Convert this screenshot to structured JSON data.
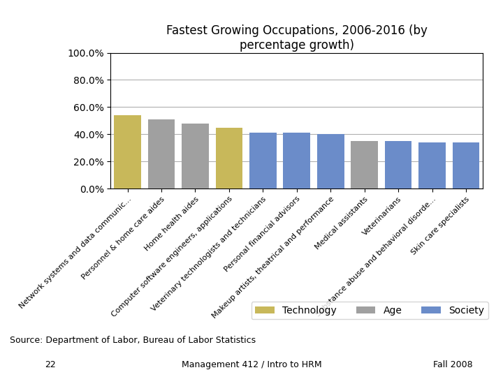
{
  "chart_data": {
    "type": "bar",
    "title": "Fastest Growing Occupations, 2006-2016 (by\npercentage growth)",
    "categories": [
      "Network systems and data communic...",
      "Personnel & home care aides",
      "Home health aides",
      "Computer software engineers, applications",
      "Veterinary technologists and technicians",
      "Personal financial advisors",
      "Makeup artists, theatrical and performance",
      "Medical assistants",
      "Veterinarians",
      "Substance abuse and behavioral disorde...",
      "Skin care specialists"
    ],
    "series": [
      {
        "name": "Technology",
        "color": "#C8B85A",
        "values": [
          54.0,
          null,
          null,
          45.0,
          null,
          null,
          null,
          null,
          null,
          null,
          null
        ]
      },
      {
        "name": "Age",
        "color": "#A0A0A0",
        "values": [
          null,
          51.0,
          48.0,
          null,
          null,
          null,
          null,
          35.0,
          null,
          null,
          null
        ]
      },
      {
        "name": "Society",
        "color": "#6B8CC9",
        "values": [
          null,
          null,
          null,
          null,
          41.0,
          41.0,
          40.0,
          null,
          35.0,
          34.0,
          34.0
        ]
      }
    ],
    "ylim": [
      0,
      100
    ],
    "yticks": [
      {
        "value": 0,
        "label": "0.0%"
      },
      {
        "value": 20,
        "label": "20.0%"
      },
      {
        "value": 40,
        "label": "40.0%"
      },
      {
        "value": 60,
        "label": "60.0%"
      },
      {
        "value": 80,
        "label": "80.0%"
      },
      {
        "value": 100,
        "label": "100.0%"
      }
    ],
    "grid": true,
    "legend": "lower right",
    "annotations": [
      "Source: Department of Labor, Bureau of Labor Statistics",
      "22",
      "Management 412 / Intro to HRM",
      "Fall 2008"
    ]
  }
}
